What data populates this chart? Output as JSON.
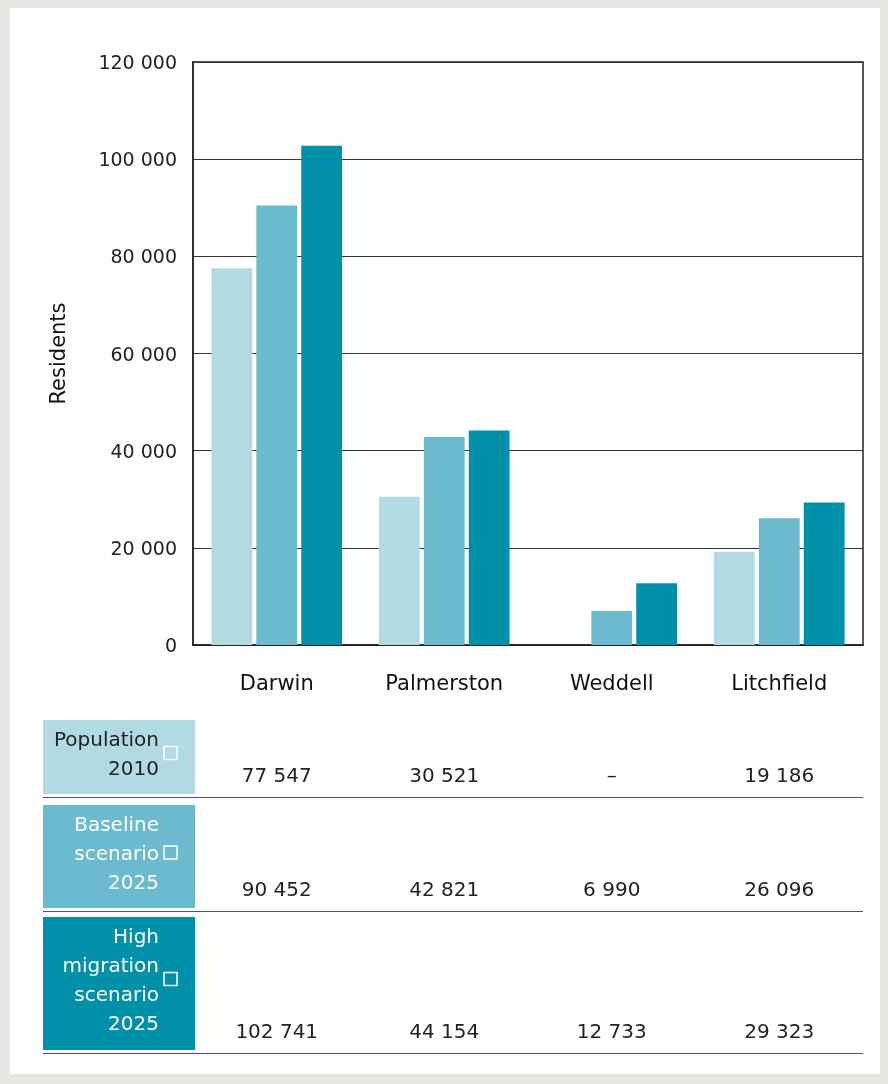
{
  "chart_data": {
    "type": "bar",
    "ylabel": "Residents",
    "categories": [
      "Darwin",
      "Palmerston",
      "Weddell",
      "Litchfield"
    ],
    "series": [
      {
        "name": "Population 2010",
        "color": "#b2dae2",
        "values": [
          77547,
          30521,
          null,
          19186
        ],
        "value_labels": [
          "77 547",
          "30 521",
          "–",
          "19 186"
        ]
      },
      {
        "name": "Baseline scenario 2025",
        "color": "#6bbacd",
        "values": [
          90452,
          42821,
          6990,
          26096
        ],
        "value_labels": [
          "90 452",
          "42 821",
          "6 990",
          "26 096"
        ]
      },
      {
        "name": "High migration scenario 2025",
        "color": "#0090a9",
        "values": [
          102741,
          44154,
          12733,
          29323
        ],
        "value_labels": [
          "102 741",
          "44 154",
          "12 733",
          "29 323"
        ]
      }
    ],
    "ylim": [
      0,
      120000
    ],
    "yticks": [
      {
        "value": 0,
        "label": "0"
      },
      {
        "value": 20000,
        "label": "20 000"
      },
      {
        "value": 40000,
        "label": "40 000"
      },
      {
        "value": 60000,
        "label": "60 000"
      },
      {
        "value": 80000,
        "label": "80 000"
      },
      {
        "value": 100000,
        "label": "100 000"
      },
      {
        "value": 120000,
        "label": "120 000"
      }
    ],
    "grid": "y",
    "legend": "bottom"
  }
}
